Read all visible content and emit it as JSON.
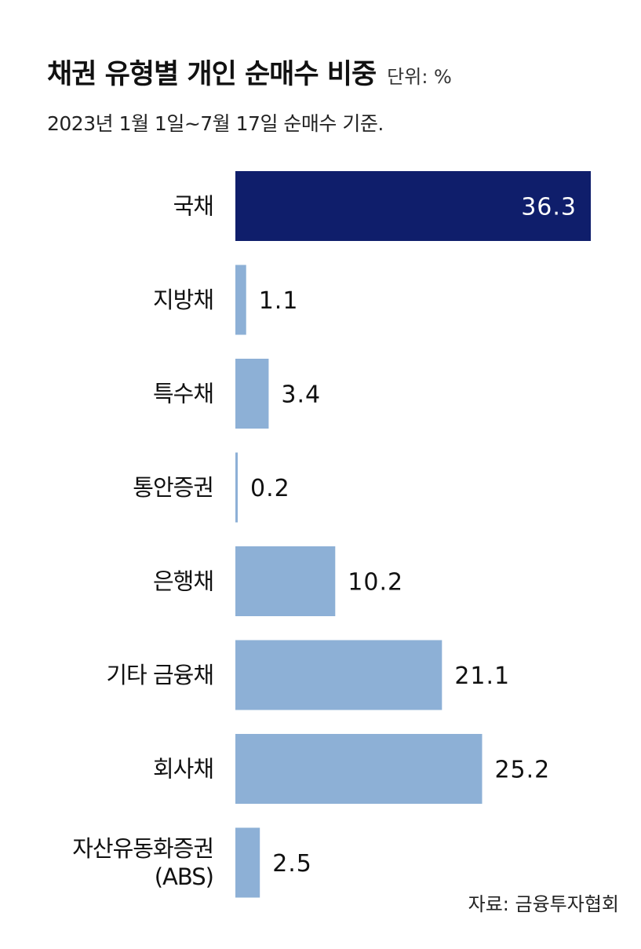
{
  "title": "채권 유형별 개인 순매수 비중",
  "unit": "단위: %",
  "subtitle": "2023년 1월 1일~7월 17일 순매수 기준.",
  "source": "자료: 금융투자협회",
  "colors": {
    "highlight": "#0f1e6b",
    "bar": "#8db0d6",
    "highlight_text": "#ffffff",
    "text": "#111111"
  },
  "chart_data": {
    "type": "bar",
    "orientation": "horizontal",
    "title": "채권 유형별 개인 순매수 비중",
    "categories": [
      [
        "국채"
      ],
      [
        "지방채"
      ],
      [
        "특수채"
      ],
      [
        "통안증권"
      ],
      [
        "은행채"
      ],
      [
        "기타 금융채"
      ],
      [
        "회사채"
      ],
      [
        "자산유동화증권",
        "(ABS)"
      ]
    ],
    "values": [
      36.3,
      1.1,
      3.4,
      0.2,
      10.2,
      21.1,
      25.2,
      2.5
    ],
    "value_labels": [
      "36.3",
      "1.1",
      "3.4",
      "0.2",
      "10.2",
      "21.1",
      "25.2",
      "2.5"
    ],
    "highlight_index": 0,
    "xlim": [
      0,
      36.3
    ],
    "grid": false,
    "legend": "none"
  }
}
